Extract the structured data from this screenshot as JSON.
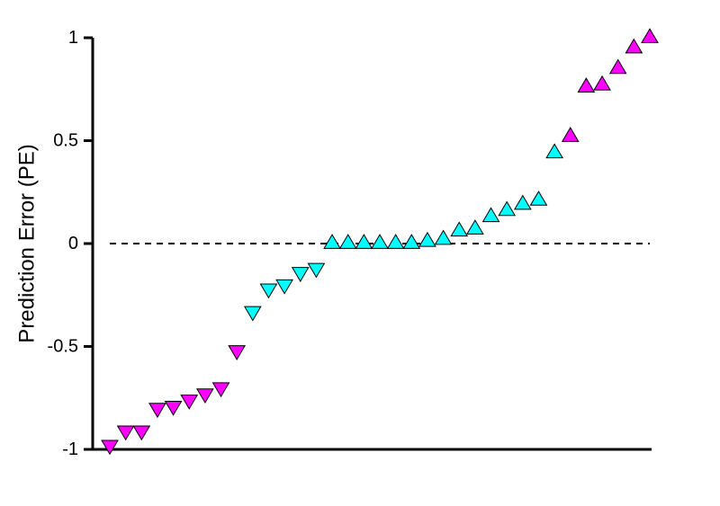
{
  "chart_data": {
    "type": "scatter",
    "title": "",
    "xlabel": "",
    "ylabel": "Prediction Error (PE)",
    "ylim": [
      -1,
      1
    ],
    "yticks": [
      1,
      0.5,
      0,
      -0.5,
      -1
    ],
    "ytick_labels": [
      "1",
      "0.5",
      "0",
      "-0.5",
      "-1"
    ],
    "grid": false,
    "reference_line": {
      "y": 0,
      "style": "dashed"
    },
    "colors": {
      "magenta": "#ff00ff",
      "cyan": "#00ffff",
      "outline": "#000000"
    },
    "points": [
      {
        "x": 1,
        "y": -0.98,
        "marker": "triangle-down",
        "color": "magenta"
      },
      {
        "x": 2,
        "y": -0.91,
        "marker": "triangle-down",
        "color": "magenta"
      },
      {
        "x": 3,
        "y": -0.91,
        "marker": "triangle-down",
        "color": "magenta"
      },
      {
        "x": 4,
        "y": -0.8,
        "marker": "triangle-down",
        "color": "magenta"
      },
      {
        "x": 5,
        "y": -0.79,
        "marker": "triangle-down",
        "color": "magenta"
      },
      {
        "x": 6,
        "y": -0.76,
        "marker": "triangle-down",
        "color": "magenta"
      },
      {
        "x": 7,
        "y": -0.73,
        "marker": "triangle-down",
        "color": "magenta"
      },
      {
        "x": 8,
        "y": -0.7,
        "marker": "triangle-down",
        "color": "magenta"
      },
      {
        "x": 9,
        "y": -0.52,
        "marker": "triangle-down",
        "color": "magenta"
      },
      {
        "x": 10,
        "y": -0.33,
        "marker": "triangle-down",
        "color": "cyan"
      },
      {
        "x": 11,
        "y": -0.22,
        "marker": "triangle-down",
        "color": "cyan"
      },
      {
        "x": 12,
        "y": -0.2,
        "marker": "triangle-down",
        "color": "cyan"
      },
      {
        "x": 13,
        "y": -0.14,
        "marker": "triangle-down",
        "color": "cyan"
      },
      {
        "x": 14,
        "y": -0.12,
        "marker": "triangle-down",
        "color": "cyan"
      },
      {
        "x": 15,
        "y": 0.0,
        "marker": "triangle-up",
        "color": "cyan"
      },
      {
        "x": 16,
        "y": 0.0,
        "marker": "triangle-up",
        "color": "cyan"
      },
      {
        "x": 17,
        "y": 0.0,
        "marker": "triangle-up",
        "color": "cyan"
      },
      {
        "x": 18,
        "y": 0.0,
        "marker": "triangle-up",
        "color": "cyan"
      },
      {
        "x": 19,
        "y": 0.0,
        "marker": "triangle-up",
        "color": "cyan"
      },
      {
        "x": 20,
        "y": 0.0,
        "marker": "triangle-up",
        "color": "cyan"
      },
      {
        "x": 21,
        "y": 0.01,
        "marker": "triangle-up",
        "color": "cyan"
      },
      {
        "x": 22,
        "y": 0.02,
        "marker": "triangle-up",
        "color": "cyan"
      },
      {
        "x": 23,
        "y": 0.06,
        "marker": "triangle-up",
        "color": "cyan"
      },
      {
        "x": 24,
        "y": 0.07,
        "marker": "triangle-up",
        "color": "cyan"
      },
      {
        "x": 25,
        "y": 0.13,
        "marker": "triangle-up",
        "color": "cyan"
      },
      {
        "x": 26,
        "y": 0.16,
        "marker": "triangle-up",
        "color": "cyan"
      },
      {
        "x": 27,
        "y": 0.19,
        "marker": "triangle-up",
        "color": "cyan"
      },
      {
        "x": 28,
        "y": 0.21,
        "marker": "triangle-up",
        "color": "cyan"
      },
      {
        "x": 29,
        "y": 0.44,
        "marker": "triangle-up",
        "color": "cyan"
      },
      {
        "x": 30,
        "y": 0.52,
        "marker": "triangle-up",
        "color": "magenta"
      },
      {
        "x": 31,
        "y": 0.76,
        "marker": "triangle-up",
        "color": "magenta"
      },
      {
        "x": 32,
        "y": 0.77,
        "marker": "triangle-up",
        "color": "magenta"
      },
      {
        "x": 33,
        "y": 0.85,
        "marker": "triangle-up",
        "color": "magenta"
      },
      {
        "x": 34,
        "y": 0.95,
        "marker": "triangle-up",
        "color": "magenta"
      },
      {
        "x": 35,
        "y": 1.0,
        "marker": "triangle-up",
        "color": "magenta"
      }
    ]
  }
}
